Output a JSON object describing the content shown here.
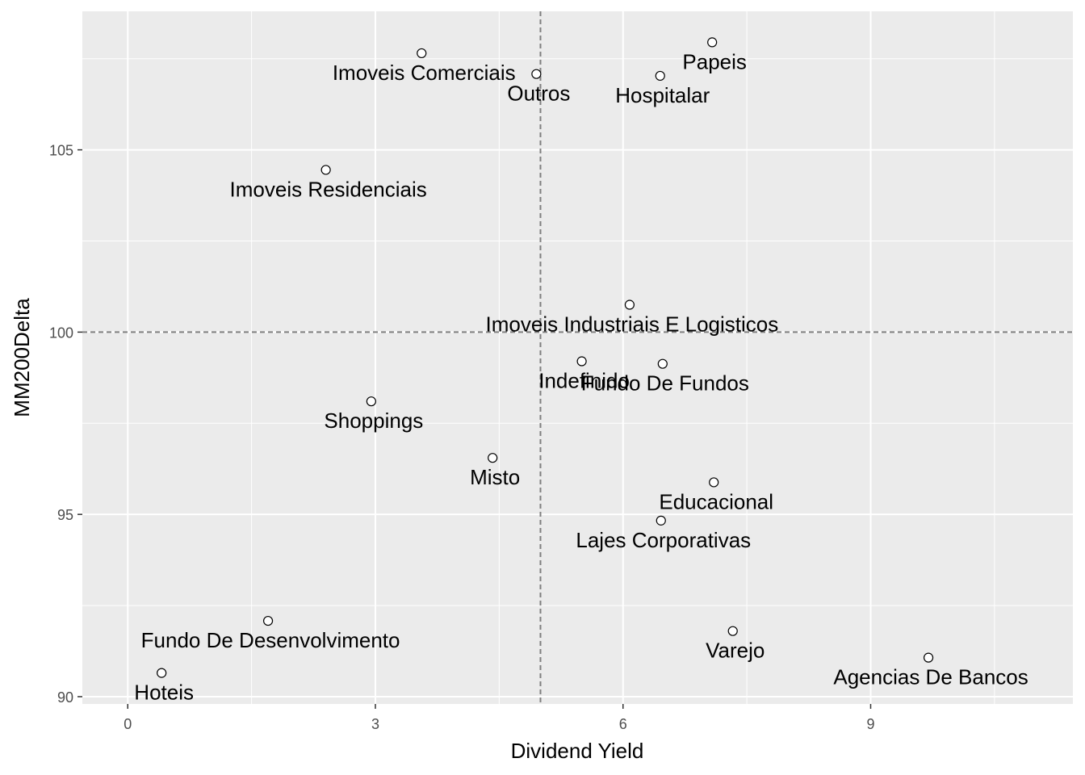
{
  "chart_data": {
    "type": "scatter",
    "title": "",
    "xlabel": "Dividend Yield",
    "ylabel": "MM200Delta",
    "xlim": [
      -0.55,
      11.45
    ],
    "ylim": [
      89.8,
      108.8
    ],
    "x_ticks": [
      0,
      3,
      6,
      9
    ],
    "y_ticks": [
      90,
      95,
      100,
      105
    ],
    "x_tick_labels": [
      "0",
      "3",
      "6",
      "9"
    ],
    "y_tick_labels": [
      "90",
      "95",
      "100",
      "105"
    ],
    "reference_lines": {
      "x": 5,
      "y": 100,
      "style": "dashed"
    },
    "grid": true,
    "background": "#ebebeb",
    "grid_color": "#ffffff",
    "points": [
      {
        "label": "Papeis",
        "x": 7.08,
        "y": 107.95
      },
      {
        "label": "Imoveis Comerciais",
        "x": 3.56,
        "y": 107.65
      },
      {
        "label": "Outros",
        "x": 4.95,
        "y": 107.08
      },
      {
        "label": "Hospitalar",
        "x": 6.45,
        "y": 107.03
      },
      {
        "label": "Imoveis Residenciais",
        "x": 2.4,
        "y": 104.45
      },
      {
        "label": "Imoveis Industriais E Logisticos",
        "x": 6.08,
        "y": 100.75
      },
      {
        "label": "Indefinido",
        "x": 5.5,
        "y": 99.2
      },
      {
        "label": "Fundo De Fundos",
        "x": 6.48,
        "y": 99.13
      },
      {
        "label": "Shoppings",
        "x": 2.95,
        "y": 98.1
      },
      {
        "label": "Misto",
        "x": 4.42,
        "y": 96.55
      },
      {
        "label": "Educacional",
        "x": 7.1,
        "y": 95.88
      },
      {
        "label": "Lajes Corporativas",
        "x": 6.46,
        "y": 94.83
      },
      {
        "label": "Fundo De Desenvolvimento",
        "x": 1.7,
        "y": 92.08
      },
      {
        "label": "Varejo",
        "x": 7.33,
        "y": 91.8
      },
      {
        "label": "Agencias De Bancos",
        "x": 9.7,
        "y": 91.07
      },
      {
        "label": "Hoteis",
        "x": 0.41,
        "y": 90.65
      }
    ]
  }
}
